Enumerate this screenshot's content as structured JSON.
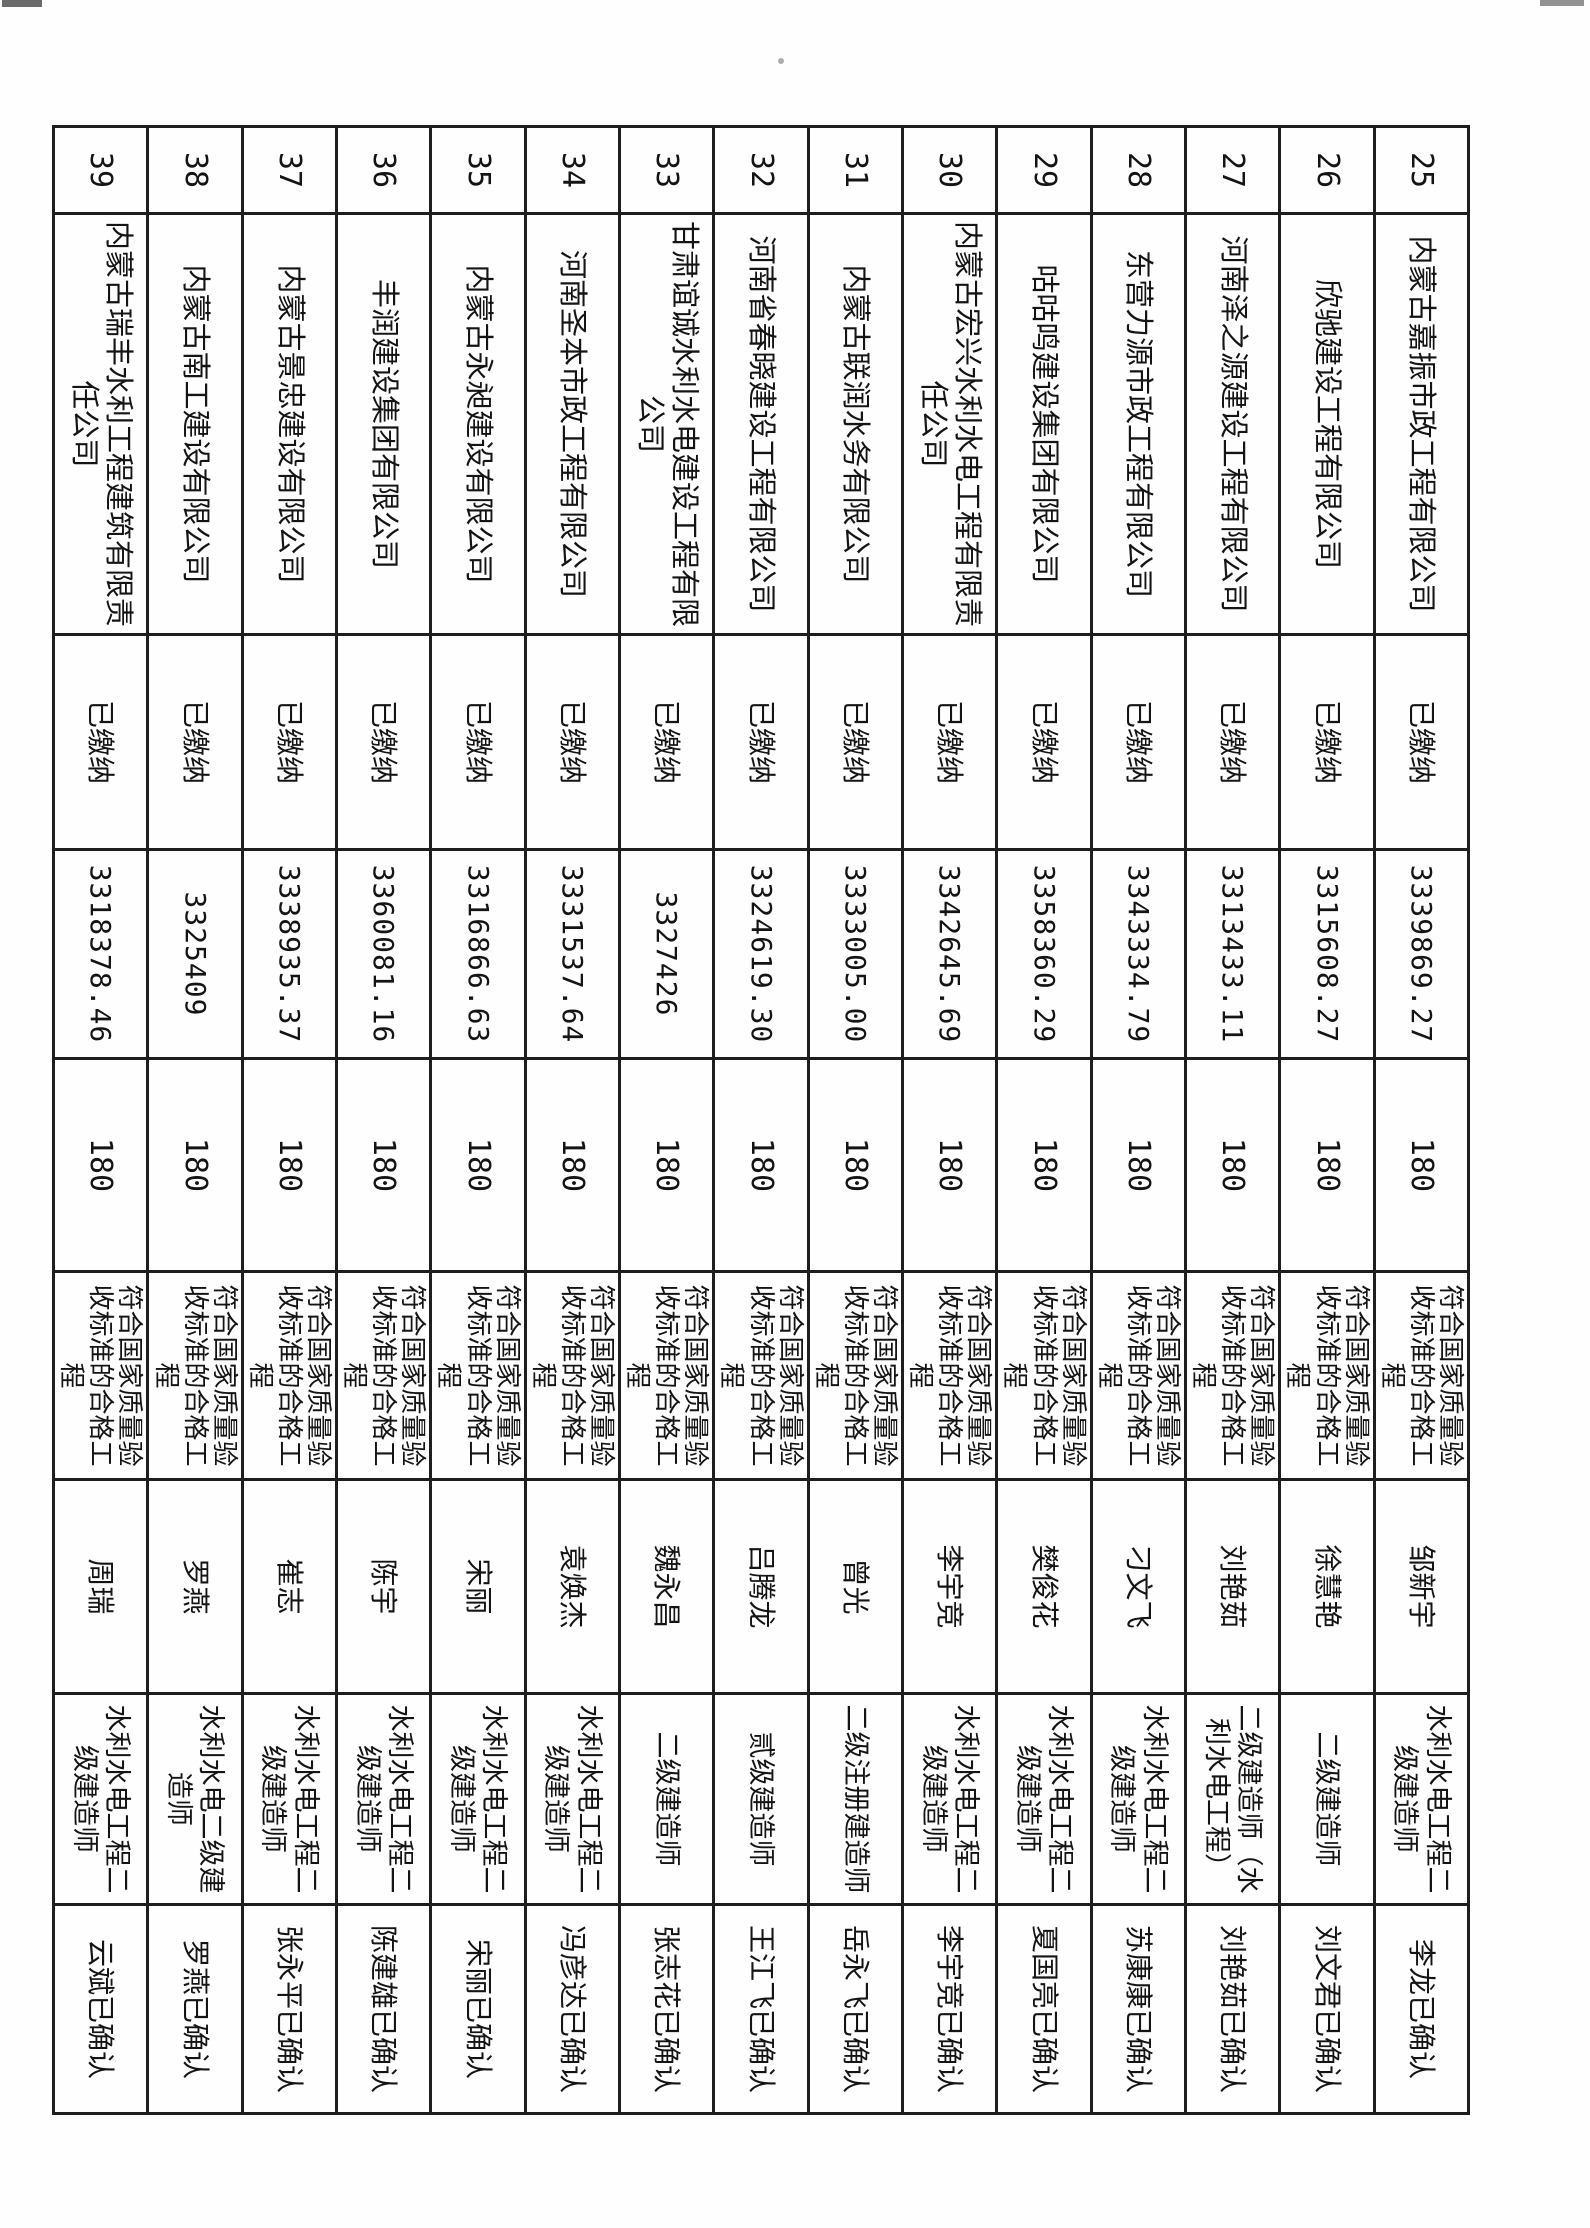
{
  "document": {
    "kind": "scanned-bid-record-table",
    "deposit_status_value": "已缴纳",
    "duration_value": "180",
    "quality_value": "符合国家质量验收标准的合格工程",
    "rows": [
      {
        "no": "25",
        "company": "内蒙古嘉振市政工程有限公司",
        "deposit": "已缴纳",
        "amount": "3339869.27",
        "duration": "180",
        "quality": "符合国家质量验收标准的合格工程",
        "manager": "邹新宇",
        "qualification": "水利水电工程二级建造师",
        "confirmation": "李龙已确认"
      },
      {
        "no": "26",
        "company": "欣驰建设工程有限公司",
        "deposit": "已缴纳",
        "amount": "3315608.27",
        "duration": "180",
        "quality": "符合国家质量验收标准的合格工程",
        "manager": "徐慧艳",
        "qualification": "二级建造师",
        "confirmation": "刘文君已确认"
      },
      {
        "no": "27",
        "company": "河南泽之源建设工程有限公司",
        "deposit": "已缴纳",
        "amount": "3313433.11",
        "duration": "180",
        "quality": "符合国家质量验收标准的合格工程",
        "manager": "刘艳茹",
        "qualification": "二级建造师（水利水电工程）",
        "confirmation": "刘艳茹已确认"
      },
      {
        "no": "28",
        "company": "东营力源市政工程有限公司",
        "deposit": "已缴纳",
        "amount": "3343334.79",
        "duration": "180",
        "quality": "符合国家质量验收标准的合格工程",
        "manager": "刁文飞",
        "qualification": "水利水电工程二级建造师",
        "confirmation": "苏康康已确认"
      },
      {
        "no": "29",
        "company": "咕咕鸣建设集团有限公司",
        "deposit": "已缴纳",
        "amount": "3358360.29",
        "duration": "180",
        "quality": "符合国家质量验收标准的合格工程",
        "manager": "樊俊花",
        "qualification": "水利水电工程二级建造师",
        "confirmation": "夏国亮已确认"
      },
      {
        "no": "30",
        "company": "内蒙古宏兴水利水电工程有限责任公司",
        "deposit": "已缴纳",
        "amount": "3342645.69",
        "duration": "180",
        "quality": "符合国家质量验收标准的合格工程",
        "manager": "李宇竞",
        "qualification": "水利水电工程二级建造师",
        "confirmation": "李宇竞已确认"
      },
      {
        "no": "31",
        "company": "内蒙古联润水务有限公司",
        "deposit": "已缴纳",
        "amount": "3333005.00",
        "duration": "180",
        "quality": "符合国家质量验收标准的合格工程",
        "manager": "曾光",
        "qualification": "二级注册建造师",
        "confirmation": "岳永飞已确认"
      },
      {
        "no": "32",
        "company": "河南省春晓建设工程有限公司",
        "deposit": "已缴纳",
        "amount": "3324619.30",
        "duration": "180",
        "quality": "符合国家质量验收标准的合格工程",
        "manager": "吕腾龙",
        "qualification": "贰级建造师",
        "confirmation": "王江飞已确认"
      },
      {
        "no": "33",
        "company": "甘肃谊诚水利水电建设工程有限公司",
        "deposit": "已缴纳",
        "amount": "3327426",
        "duration": "180",
        "quality": "符合国家质量验收标准的合格工程",
        "manager": "魏永昌",
        "qualification": "二级建造师",
        "confirmation": "张志花已确认"
      },
      {
        "no": "34",
        "company": "河南圣本市政工程有限公司",
        "deposit": "已缴纳",
        "amount": "3331537.64",
        "duration": "180",
        "quality": "符合国家质量验收标准的合格工程",
        "manager": "袁焕杰",
        "qualification": "水利水电工程二级建造师",
        "confirmation": "冯彦达已确认"
      },
      {
        "no": "35",
        "company": "内蒙古永昶建设有限公司",
        "deposit": "已缴纳",
        "amount": "3316866.63",
        "duration": "180",
        "quality": "符合国家质量验收标准的合格工程",
        "manager": "宋丽",
        "qualification": "水利水电工程二级建造师",
        "confirmation": "宋丽已确认"
      },
      {
        "no": "36",
        "company": "丰润建设集团有限公司",
        "deposit": "已缴纳",
        "amount": "3360081.16",
        "duration": "180",
        "quality": "符合国家质量验收标准的合格工程",
        "manager": "陈宇",
        "qualification": "水利水电工程二级建造师",
        "confirmation": "陈建雄已确认"
      },
      {
        "no": "37",
        "company": "内蒙古景忠建设有限公司",
        "deposit": "已缴纳",
        "amount": "3338935.37",
        "duration": "180",
        "quality": "符合国家质量验收标准的合格工程",
        "manager": "崔志",
        "qualification": "水利水电工程二级建造师",
        "confirmation": "张永平已确认"
      },
      {
        "no": "38",
        "company": "内蒙古南工建设有限公司",
        "deposit": "已缴纳",
        "amount": "3325409",
        "duration": "180",
        "quality": "符合国家质量验收标准的合格工程",
        "manager": "罗燕",
        "qualification": "水利水电二级建造师",
        "confirmation": "罗燕已确认"
      },
      {
        "no": "39",
        "company": "内蒙古瑞丰水利工程建筑有限责任公司",
        "deposit": "已缴纳",
        "amount": "3318378.46",
        "duration": "180",
        "quality": "符合国家质量验收标准的合格工程",
        "manager": "周瑞",
        "qualification": "水利水电工程二级建造师",
        "confirmation": "云斌已确认"
      }
    ]
  }
}
